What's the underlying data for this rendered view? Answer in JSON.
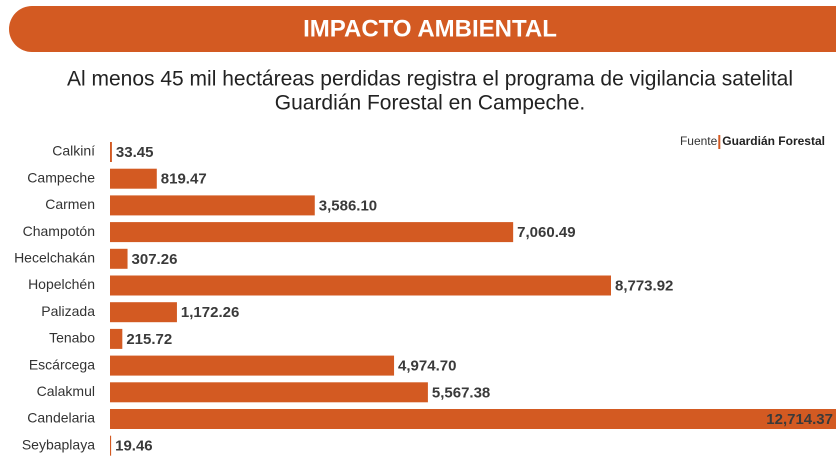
{
  "header": {
    "title": "IMPACTO AMBIENTAL"
  },
  "chart_data": {
    "type": "bar",
    "orientation": "horizontal",
    "subtitle": [
      "Al menos 45 mil hectáreas perdidas registra el programa de vigilancia satelital",
      "Guardián Forestal en Campeche."
    ],
    "source": {
      "label": "Fuente",
      "name": "Guardián Forestal"
    },
    "categories": [
      "Calkiní",
      "Campeche",
      "Carmen",
      "Champotón",
      "Hecelchakán",
      "Hopelchén",
      "Palizada",
      "Tenabo",
      "Escárcega",
      "Calakmul",
      "Candelaria",
      "Seybaplaya"
    ],
    "values": [
      33.45,
      819.47,
      3586.1,
      7060.49,
      307.26,
      8773.92,
      1172.26,
      215.72,
      4974.7,
      5567.38,
      12714.37,
      19.46
    ],
    "value_labels": [
      "33.45",
      "819.47",
      "3,586.10",
      "7,060.49",
      "307.26",
      "8,773.92",
      "1,172.26",
      "215.72",
      "4,974.70",
      "5,567.38",
      "12,714.37",
      "19.46"
    ],
    "color": "#d35a22"
  }
}
